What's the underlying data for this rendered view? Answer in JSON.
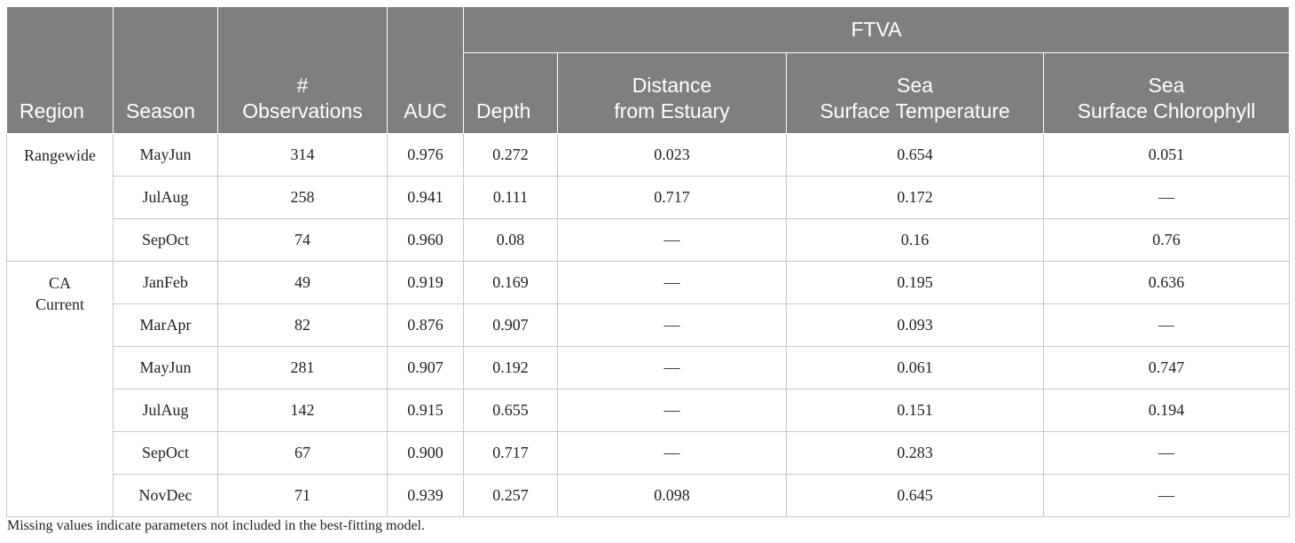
{
  "header": {
    "region": "Region",
    "season": "Season",
    "observations_line1": "#",
    "observations_line2": "Observations",
    "auc": "AUC",
    "ftva": "FTVA",
    "depth": "Depth",
    "distance_line1": "Distance",
    "distance_line2": "from Estuary",
    "sst_line1": "Sea",
    "sst_line2": "Surface Temperature",
    "ssc_line1": "Sea",
    "ssc_line2": "Surface Chlorophyll"
  },
  "groups": [
    {
      "region_line1": "Rangewide",
      "region_line2": "",
      "rows": [
        {
          "season": "MayJun",
          "obs": "314",
          "auc": "0.976",
          "depth": "0.272",
          "distance": "0.023",
          "sst": "0.654",
          "ssc": "0.051"
        },
        {
          "season": "JulAug",
          "obs": "258",
          "auc": "0.941",
          "depth": "0.111",
          "distance": "0.717",
          "sst": "0.172",
          "ssc": "—"
        },
        {
          "season": "SepOct",
          "obs": "74",
          "auc": "0.960",
          "depth": "0.08",
          "distance": "—",
          "sst": "0.16",
          "ssc": "0.76"
        }
      ]
    },
    {
      "region_line1": "CA",
      "region_line2": "Current",
      "rows": [
        {
          "season": "JanFeb",
          "obs": "49",
          "auc": "0.919",
          "depth": "0.169",
          "distance": "—",
          "sst": "0.195",
          "ssc": "0.636"
        },
        {
          "season": "MarApr",
          "obs": "82",
          "auc": "0.876",
          "depth": "0.907",
          "distance": "—",
          "sst": "0.093",
          "ssc": "—"
        },
        {
          "season": "MayJun",
          "obs": "281",
          "auc": "0.907",
          "depth": "0.192",
          "distance": "—",
          "sst": "0.061",
          "ssc": "0.747"
        },
        {
          "season": "JulAug",
          "obs": "142",
          "auc": "0.915",
          "depth": "0.655",
          "distance": "—",
          "sst": "0.151",
          "ssc": "0.194"
        },
        {
          "season": "SepOct",
          "obs": "67",
          "auc": "0.900",
          "depth": "0.717",
          "distance": "—",
          "sst": "0.283",
          "ssc": "—"
        },
        {
          "season": "NovDec",
          "obs": "71",
          "auc": "0.939",
          "depth": "0.257",
          "distance": "0.098",
          "sst": "0.645",
          "ssc": "—"
        }
      ]
    }
  ],
  "footnote": "Missing values indicate parameters not included in the best-fitting model.",
  "colors": {
    "header_bg": "#7f7f7f",
    "header_text": "#ffffff",
    "grid": "#c8c8c8"
  }
}
